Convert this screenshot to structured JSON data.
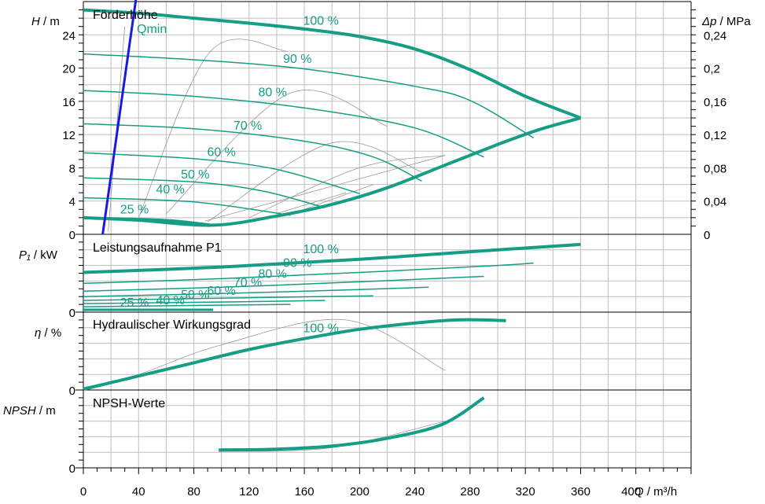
{
  "chart_data": {
    "type": "line",
    "colors": {
      "curve": "#169d86",
      "qmin": "#1a1adc",
      "grid": "#bfbfbf",
      "aux": "#9a9a9a"
    },
    "x_axis": {
      "label_symbol": "Q",
      "label_unit": " / m³/h",
      "ticks": [
        "0",
        "40",
        "80",
        "120",
        "160",
        "200",
        "240",
        "280",
        "320",
        "360",
        "400"
      ],
      "range": [
        0,
        440
      ]
    },
    "panels": [
      {
        "id": "head",
        "title": "Förderhöhe",
        "ylabel_symbol": "H",
        "ylabel_unit": " / m",
        "yrange": [
          0,
          28
        ],
        "yticks": [
          "0",
          "4",
          "8",
          "12",
          "16",
          "20",
          "24"
        ],
        "right_axis": {
          "symbol": "Δp",
          "unit": " / MPa",
          "ticks": [
            "0",
            "0,04",
            "0,08",
            "0,12",
            "0,16",
            "0,2",
            "0,24"
          ]
        },
        "qmin": {
          "label": "Qmin",
          "points": [
            [
              14,
              0
            ],
            [
              38,
              28.2
            ]
          ]
        },
        "max_curve": {
          "upper": [
            [
              0,
              27
            ],
            [
              40,
              26.6
            ],
            [
              80,
              26
            ],
            [
              120,
              25.4
            ],
            [
              160,
              24.7
            ],
            [
              200,
              23.8
            ],
            [
              240,
              22.3
            ],
            [
              280,
              19.8
            ],
            [
              320,
              16.6
            ],
            [
              360,
              14
            ]
          ],
          "lower": [
            [
              0,
              2
            ],
            [
              40,
              1.7
            ],
            [
              94,
              1.1
            ],
            [
              140,
              2.2
            ],
            [
              180,
              3.6
            ],
            [
              220,
              5.6
            ],
            [
              260,
              8.2
            ],
            [
              300,
              10.8
            ],
            [
              330,
              12.6
            ],
            [
              360,
              14
            ]
          ]
        },
        "series": [
          {
            "name": "90 %",
            "values": [
              [
                0,
                21.7
              ],
              [
                80,
                21
              ],
              [
                160,
                19.9
              ],
              [
                240,
                17.8
              ],
              [
                280,
                16.1
              ],
              [
                326,
                11.6
              ]
            ]
          },
          {
            "name": "80 %",
            "values": [
              [
                0,
                17.3
              ],
              [
                80,
                16.6
              ],
              [
                160,
                15.2
              ],
              [
                240,
                12.8
              ],
              [
                290,
                9.3
              ]
            ]
          },
          {
            "name": "70 %",
            "values": [
              [
                0,
                13.3
              ],
              [
                80,
                12.7
              ],
              [
                160,
                11.2
              ],
              [
                210,
                9.3
              ],
              [
                245,
                6.4
              ]
            ]
          },
          {
            "name": "60 %",
            "values": [
              [
                0,
                9.8
              ],
              [
                80,
                9.1
              ],
              [
                140,
                7.8
              ],
              [
                200,
                4.9
              ]
            ]
          },
          {
            "name": "50 %",
            "values": [
              [
                0,
                6.8
              ],
              [
                80,
                6.3
              ],
              [
                130,
                5.2
              ],
              [
                175,
                3.2
              ]
            ]
          },
          {
            "name": "40 %",
            "values": [
              [
                0,
                4.4
              ],
              [
                80,
                3.9
              ],
              [
                150,
                2.3
              ]
            ]
          },
          {
            "name": "25 %",
            "values": [
              [
                0,
                2
              ],
              [
                60,
                1.7
              ],
              [
                94,
                1.1
              ]
            ]
          }
        ],
        "series_labels": [
          {
            "text": "100 %",
            "x": 172,
            "y": 25.2
          },
          {
            "text": "90 %",
            "x": 155,
            "y": 20.6
          },
          {
            "text": "80 %",
            "x": 137,
            "y": 16.6
          },
          {
            "text": "70 %",
            "x": 119,
            "y": 12.6
          },
          {
            "text": "60 %",
            "x": 100,
            "y": 9.4
          },
          {
            "text": "50 %",
            "x": 81,
            "y": 6.7
          },
          {
            "text": "40 %",
            "x": 63,
            "y": 4.9
          },
          {
            "text": "25 %",
            "x": 37,
            "y": 2.5
          }
        ]
      },
      {
        "id": "power",
        "title": "Leistungsaufnahme P1",
        "ylabel_symbol": "P₁",
        "ylabel_unit": " / kW",
        "yrange": [
          0,
          100
        ],
        "yticks": [
          "0"
        ],
        "series": [
          {
            "name": "100 %",
            "values": [
              [
                0,
                51
              ],
              [
                100,
                58
              ],
              [
                200,
                68
              ],
              [
                300,
                80
              ],
              [
                360,
                87
              ]
            ]
          },
          {
            "name": "90 %",
            "values": [
              [
                0,
                37
              ],
              [
                100,
                43
              ],
              [
                200,
                51
              ],
              [
                300,
                60
              ],
              [
                326,
                63
              ]
            ]
          },
          {
            "name": "80 %",
            "values": [
              [
                0,
                27
              ],
              [
                100,
                32
              ],
              [
                200,
                39
              ],
              [
                290,
                46
              ]
            ]
          },
          {
            "name": "70 %",
            "values": [
              [
                0,
                20
              ],
              [
                100,
                24
              ],
              [
                200,
                29
              ],
              [
                250,
                32
              ]
            ]
          },
          {
            "name": "60 %",
            "values": [
              [
                0,
                15
              ],
              [
                100,
                18
              ],
              [
                210,
                21
              ]
            ]
          },
          {
            "name": "50 %",
            "values": [
              [
                0,
                11
              ],
              [
                100,
                13
              ],
              [
                175,
                15
              ]
            ]
          },
          {
            "name": "40 %",
            "values": [
              [
                0,
                7
              ],
              [
                100,
                9
              ],
              [
                150,
                10
              ]
            ]
          },
          {
            "name": "25 %",
            "values": [
              [
                0,
                3
              ],
              [
                94,
                3
              ]
            ]
          }
        ],
        "series_labels": [
          {
            "text": "100 %",
            "x": 172,
            "y": 76
          },
          {
            "text": "90 %",
            "x": 155,
            "y": 58
          },
          {
            "text": "80 %",
            "x": 137,
            "y": 44
          },
          {
            "text": "70 %",
            "x": 119,
            "y": 33
          },
          {
            "text": "60 %",
            "x": 100,
            "y": 22
          },
          {
            "text": "50 %",
            "x": 81,
            "y": 17
          },
          {
            "text": "40 %",
            "x": 63,
            "y": 10
          },
          {
            "text": "25 %",
            "x": 37,
            "y": 7
          }
        ]
      },
      {
        "id": "efficiency",
        "title": "Hydraulischer Wirkungsgrad",
        "ylabel_symbol": "η",
        "ylabel_unit": " / %",
        "yrange": [
          0,
          100
        ],
        "yticks": [
          "0"
        ],
        "series": [
          {
            "name": "100 %",
            "values": [
              [
                0,
                1
              ],
              [
                40,
                18
              ],
              [
                80,
                35
              ],
              [
                120,
                52
              ],
              [
                160,
                66
              ],
              [
                200,
                78
              ],
              [
                240,
                86
              ],
              [
                270,
                90
              ],
              [
                290,
                90
              ],
              [
                306,
                89
              ]
            ]
          }
        ],
        "series_labels": [
          {
            "text": "100 %",
            "x": 172,
            "y": 74
          }
        ]
      },
      {
        "id": "npsh",
        "title": "NPSH-Werte",
        "ylabel_symbol": "NPSH",
        "ylabel_unit": " / m",
        "yrange": [
          0,
          100
        ],
        "yticks": [
          "0"
        ],
        "series": [
          {
            "name": "100 %",
            "values": [
              [
                98,
                23
              ],
              [
                140,
                24
              ],
              [
                180,
                28
              ],
              [
                220,
                38
              ],
              [
                260,
                56
              ],
              [
                290,
                90
              ]
            ]
          }
        ],
        "series_labels": []
      }
    ]
  }
}
